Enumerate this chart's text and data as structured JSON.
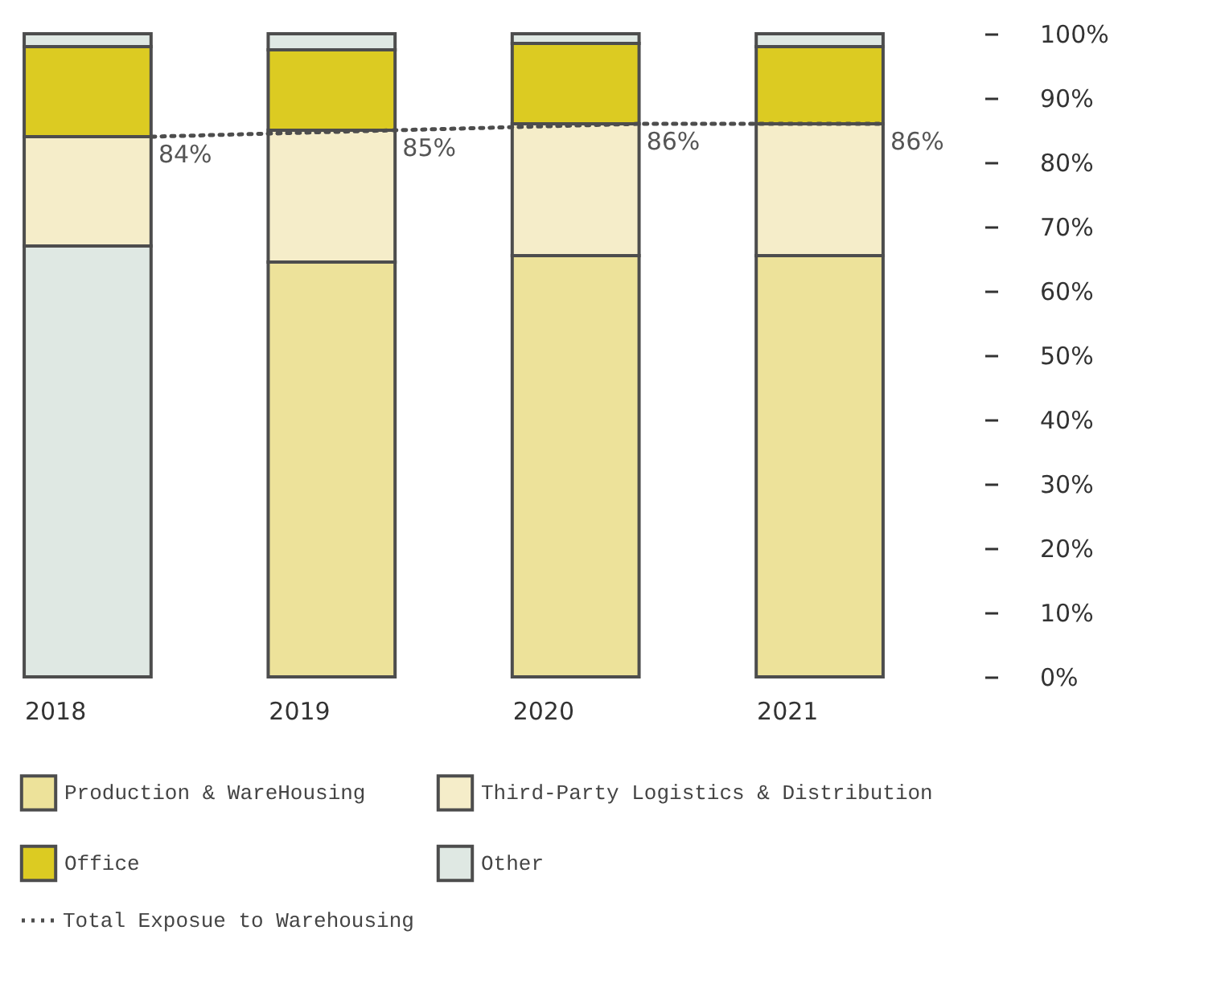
{
  "chart_data": {
    "type": "bar",
    "stacked": true,
    "legend": "bottom",
    "categories": [
      "2018",
      "2019",
      "2020",
      "2021"
    ],
    "series": [
      {
        "name": "Production & WareHousing",
        "color": "#ede29a",
        "colors": [
          "#dfe8e3",
          "#ede29a",
          "#ede29a",
          "#ede29a"
        ],
        "values": [
          67,
          64.5,
          65.5,
          65.5
        ]
      },
      {
        "name": "Third-Party Logistics & Distribution",
        "color": "#f5edc9",
        "values": [
          17,
          20.5,
          20.5,
          20.5
        ]
      },
      {
        "name": "Office",
        "color": "#dccb22",
        "values": [
          14,
          12.5,
          12.5,
          12
        ]
      },
      {
        "name": "Other",
        "color": "#dfe8e3",
        "values": [
          2,
          2.5,
          1.5,
          2
        ]
      },
      {
        "name": "Total Exposue to Warehousing",
        "type": "line",
        "color": "#4d4d4d",
        "line_style": "dotted",
        "values": [
          84,
          85,
          86,
          86
        ],
        "value_labels": [
          "84%",
          "85%",
          "86%",
          "86%"
        ]
      }
    ],
    "ylim": [
      0,
      100
    ],
    "yticks": [
      {
        "value": 0,
        "label": "0%"
      },
      {
        "value": 10,
        "label": "10%"
      },
      {
        "value": 20,
        "label": "20%"
      },
      {
        "value": 30,
        "label": "30%"
      },
      {
        "value": 40,
        "label": "40%"
      },
      {
        "value": 50,
        "label": "50%"
      },
      {
        "value": 60,
        "label": "60%"
      },
      {
        "value": 70,
        "label": "70%"
      },
      {
        "value": 80,
        "label": "80%"
      },
      {
        "value": 90,
        "label": "90%"
      },
      {
        "value": 100,
        "label": "100%"
      }
    ],
    "grid": false
  }
}
